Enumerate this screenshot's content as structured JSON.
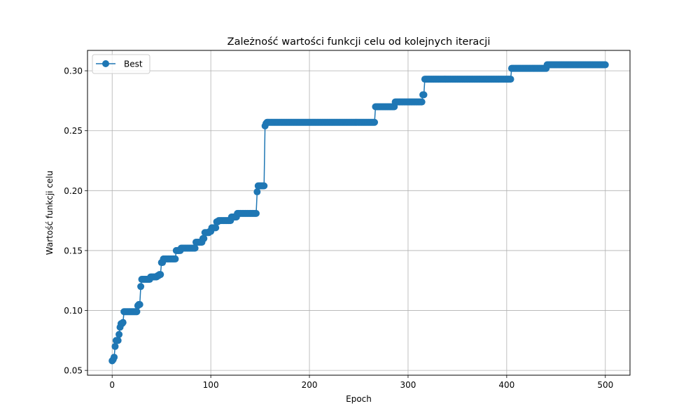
{
  "chart_data": {
    "type": "line",
    "title": "Zależność wartości funkcji celu od kolejnych iteracji",
    "xlabel": "Epoch",
    "ylabel": "Wartość funkcji celu",
    "xlim": [
      -25,
      525
    ],
    "ylim": [
      0.046,
      0.317
    ],
    "xticks": [
      0,
      100,
      200,
      300,
      400,
      500
    ],
    "yticks": [
      0.05,
      0.1,
      0.15,
      0.2,
      0.25,
      0.3
    ],
    "ytick_labels": [
      "0.05",
      "0.10",
      "0.15",
      "0.20",
      "0.25",
      "0.30"
    ],
    "grid": true,
    "legend_position": "top-left",
    "colors": {
      "series": "#1f77b4",
      "grid": "#b0b0b0"
    },
    "series": [
      {
        "name": "Best",
        "marker": "circle",
        "steps": [
          [
            0,
            0.058
          ],
          [
            1,
            0.059
          ],
          [
            2,
            0.061
          ],
          [
            3,
            0.07
          ],
          [
            4,
            0.075
          ],
          [
            7,
            0.08
          ],
          [
            8,
            0.086
          ],
          [
            9,
            0.089
          ],
          [
            11,
            0.09
          ],
          [
            12,
            0.099
          ],
          [
            26,
            0.104
          ],
          [
            27,
            0.105
          ],
          [
            29,
            0.12
          ],
          [
            30,
            0.126
          ],
          [
            39,
            0.128
          ],
          [
            46,
            0.129
          ],
          [
            48,
            0.13
          ],
          [
            50,
            0.14
          ],
          [
            52,
            0.143
          ],
          [
            65,
            0.15
          ],
          [
            70,
            0.152
          ],
          [
            85,
            0.157
          ],
          [
            92,
            0.16
          ],
          [
            94,
            0.165
          ],
          [
            99,
            0.166
          ],
          [
            101,
            0.169
          ],
          [
            106,
            0.174
          ],
          [
            108,
            0.175
          ],
          [
            121,
            0.178
          ],
          [
            127,
            0.181
          ],
          [
            147,
            0.199
          ],
          [
            148,
            0.204
          ],
          [
            155,
            0.254
          ],
          [
            156,
            0.256
          ],
          [
            157,
            0.257
          ],
          [
            267,
            0.27
          ],
          [
            287,
            0.274
          ],
          [
            315,
            0.28
          ],
          [
            317,
            0.293
          ],
          [
            405,
            0.302
          ],
          [
            441,
            0.305
          ],
          [
            500,
            0.305
          ]
        ]
      }
    ]
  }
}
